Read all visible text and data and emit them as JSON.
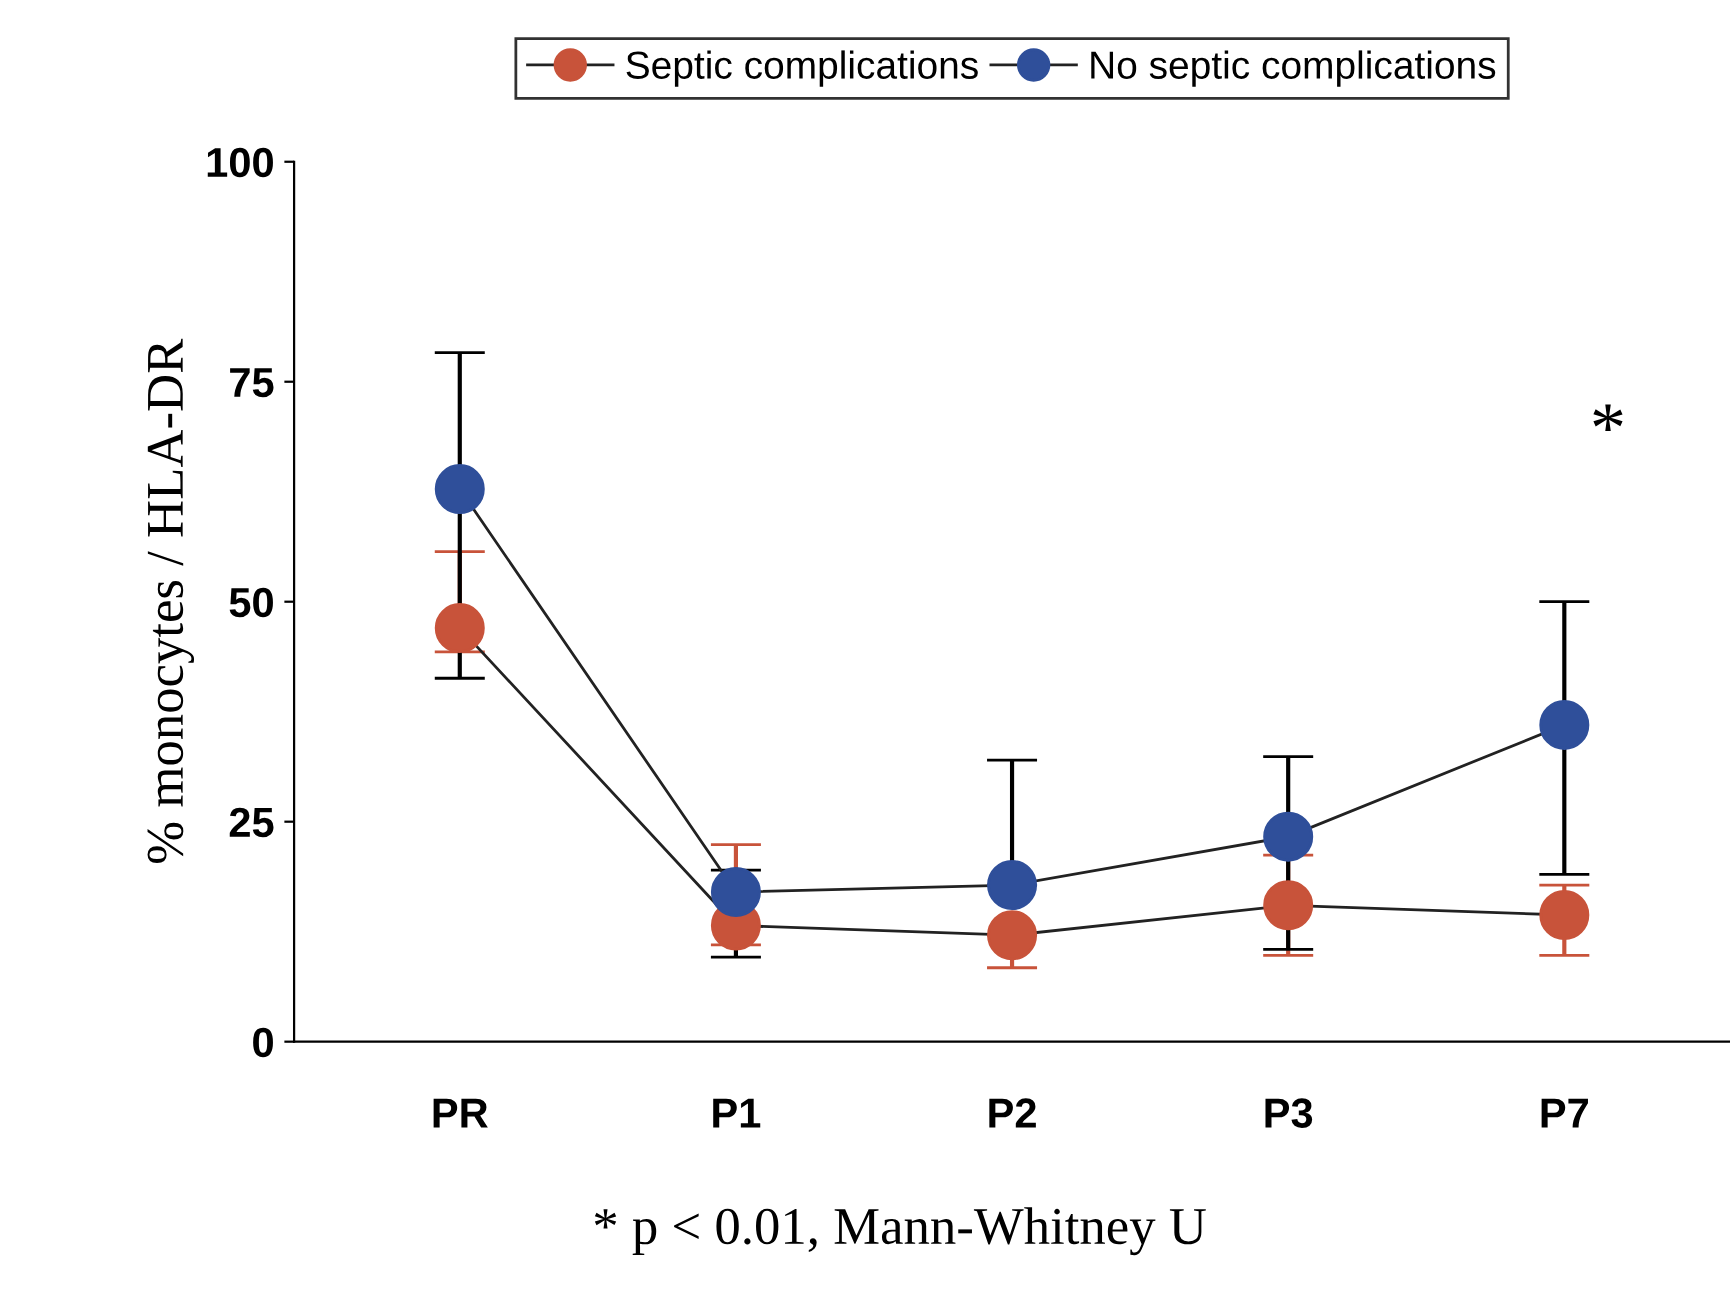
{
  "chart_data": {
    "type": "line",
    "ylabel": "% monocytes / HLA-DR",
    "categories": [
      "PR",
      "P1",
      "P2",
      "P3",
      "P7"
    ],
    "series": [
      {
        "name": "Septic complications",
        "color": "#c8533a",
        "values": [
          47,
          13.2,
          12.1,
          15.5,
          14.4
        ],
        "errors": [
          [
            44.3,
            55.7
          ],
          [
            11,
            22.4
          ],
          [
            8.4,
            12.1
          ],
          [
            9.8,
            21.2
          ],
          [
            9.8,
            17.8
          ]
        ]
      },
      {
        "name": "No septic complications",
        "color": "#2f4f9a",
        "values": [
          62.8,
          17,
          17.8,
          23.3,
          36
        ],
        "errors": [
          [
            41.3,
            78.3
          ],
          [
            9.6,
            19.5
          ],
          [
            17.8,
            32
          ],
          [
            10.5,
            32.4
          ],
          [
            19,
            50
          ]
        ]
      }
    ],
    "ylim": [
      0,
      100
    ],
    "yticks": [
      0,
      25,
      50,
      75,
      100
    ],
    "grid": false,
    "legend": "top",
    "marker": "circle",
    "line_style": "solid",
    "annotations": [
      "*",
      "* p < 0.01, Mann-Whitney U"
    ]
  }
}
